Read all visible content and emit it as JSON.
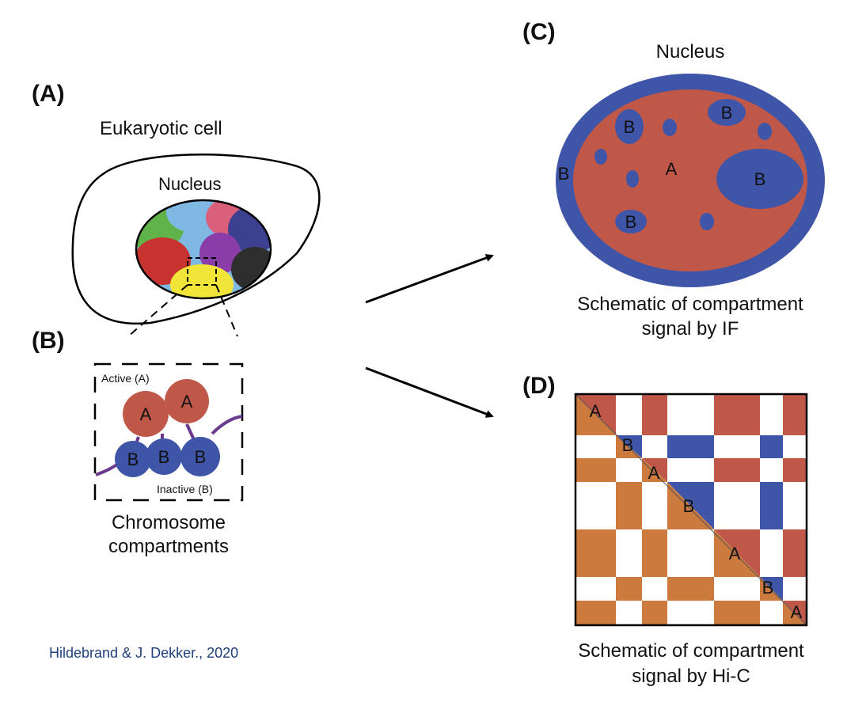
{
  "panels": {
    "a": {
      "label": "(A)",
      "cell_title": "Eukaryotic cell",
      "nucleus_label": "Nucleus"
    },
    "b": {
      "label": "(B)",
      "active_label": "Active (A)",
      "inactive_label": "Inactive (B)",
      "a_beads": [
        "A",
        "A"
      ],
      "b_beads": [
        "B",
        "B",
        "B"
      ],
      "caption": [
        "Chromosome",
        "compartments"
      ]
    },
    "c": {
      "label": "(C)",
      "nucleus_label": "Nucleus",
      "interior_label": "A",
      "periphery_label": "B",
      "b_spots": [
        "B",
        "B",
        "B",
        "B"
      ],
      "caption": [
        "Schematic of compartment",
        "signal by IF"
      ]
    },
    "d": {
      "label": "(D)",
      "diagonal_labels": [
        "A",
        "B",
        "A",
        "B",
        "A",
        "B",
        "A"
      ],
      "compartments": [
        "A",
        "B",
        "A",
        "B",
        "A",
        "B",
        "A"
      ],
      "caption": [
        "Schematic of compartment",
        "signal by Hi-C"
      ]
    }
  },
  "citation": "Hildebrand & J. Dekker., 2020",
  "colors": {
    "a_compartment": "#c0584a",
    "b_compartment": "#3f55a8",
    "hic_lower": "#cc7a3e",
    "chromatin_link": "#6b3a8f",
    "citation": "#1f3f7a"
  }
}
